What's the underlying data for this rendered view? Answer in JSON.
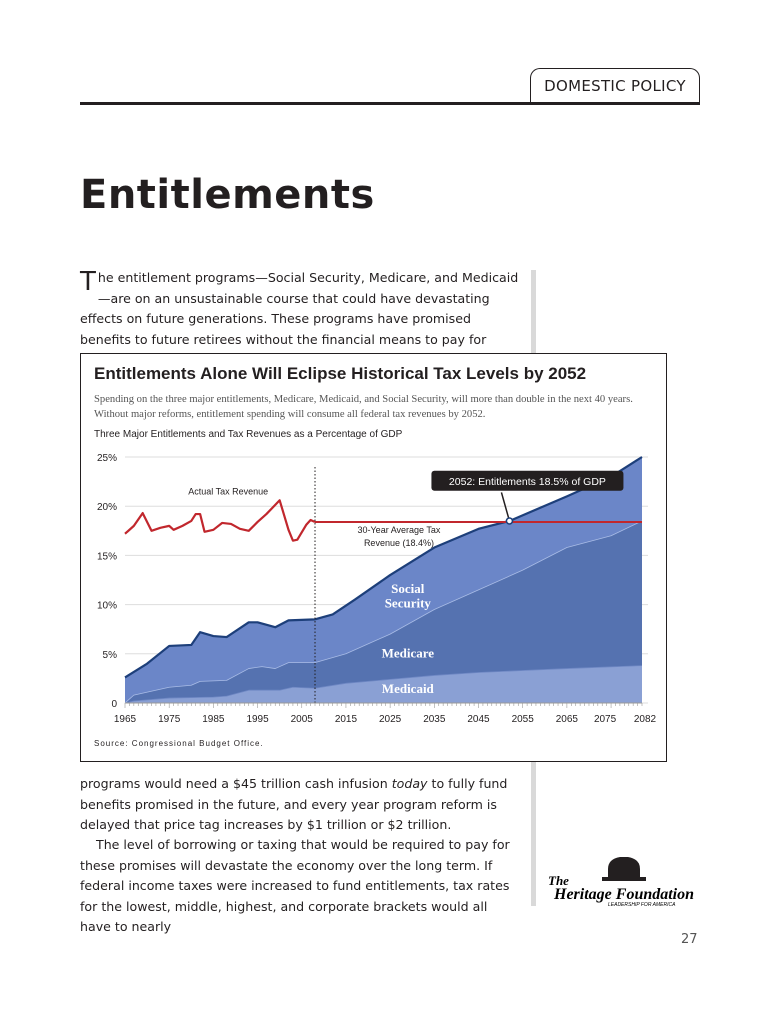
{
  "header": {
    "section_tab": "DOMESTIC POLICY"
  },
  "page_title": "Entitlements",
  "body": {
    "para1_dropcap": "T",
    "para1_before": "he entitlement programs—Social Security, Medicare, and Medicaid—are on an unsustainable course that could have devastating effects on future generations. These programs have promised benefits to future retirees without the financial means to pay for them. Collectively, these",
    "para1_after_a": "programs would need a $45 trillion cash infusion ",
    "para1_after_em": "today",
    "para1_after_b": " to fully fund benefits promised in the future, and every year program reform is delayed that price tag increases by $1 trillion or $2 trillion.",
    "para2": "The level of borrowing or taxing that would be required to pay for these promises will devastate the economy over the long term. If federal income taxes were increased to fund entitlements, tax rates for the lowest, middle, highest, and corporate brackets would all have to nearly"
  },
  "logo": {
    "name": "The Heritage Foundation",
    "tagline": "LEADERSHIP FOR AMERICA"
  },
  "page_number": "27",
  "colors": {
    "tax_line": "#c1272d",
    "social_security": "#6b86c8",
    "medicare": "#5572b0",
    "medicaid": "#8aa0d4",
    "top_line": "#1d3f7a"
  },
  "chart_data": {
    "type": "area",
    "title": "Entitlements Alone Will Eclipse Historical Tax Levels by 2052",
    "subtitle": "Spending on the three major entitlements, Medicare, Medicaid, and Social Security, will more than double in the next 40 years. Without major reforms, entitlement spending will consume all federal tax revenues by 2052.",
    "chart_label": "Three Major Entitlements and Tax Revenues as a Percentage of GDP",
    "source": "Source: Congressional Budget Office.",
    "xlim": [
      1965,
      2082
    ],
    "ylim": [
      0,
      25
    ],
    "x_ticks": [
      "1965",
      "1975",
      "1985",
      "1995",
      "2005",
      "2015",
      "2025",
      "2035",
      "2045",
      "2055",
      "2065",
      "2075",
      "2082"
    ],
    "y_ticks": [
      "0",
      "5%",
      "10%",
      "15%",
      "20%",
      "25%"
    ],
    "grid": true,
    "stacked": true,
    "series": [
      {
        "name": "Medicaid",
        "x": [
          1965,
          1967,
          1975,
          1985,
          1988,
          1993,
          2000,
          2003,
          2008,
          2015,
          2025,
          2035,
          2045,
          2055,
          2065,
          2082
        ],
        "y": [
          0,
          0.2,
          0.5,
          0.6,
          0.7,
          1.3,
          1.3,
          1.6,
          1.5,
          2.0,
          2.4,
          2.8,
          3.1,
          3.3,
          3.5,
          3.8
        ]
      },
      {
        "name": "Medicare",
        "x": [
          1965,
          1967,
          1975,
          1980,
          1982,
          1988,
          1993,
          1996,
          1999,
          2002,
          2008,
          2015,
          2025,
          2035,
          2045,
          2055,
          2065,
          2075,
          2082
        ],
        "y_cumulative": [
          0,
          0.8,
          1.6,
          1.8,
          2.2,
          2.3,
          3.5,
          3.7,
          3.5,
          4.1,
          4.1,
          5.0,
          7.0,
          9.5,
          11.5,
          13.5,
          15.8,
          17.0,
          18.5
        ]
      },
      {
        "name": "Social Security",
        "x": [
          1965,
          1970,
          1975,
          1980,
          1982,
          1985,
          1988,
          1993,
          1995,
          1999,
          2002,
          2008,
          2012,
          2017,
          2025,
          2035,
          2045,
          2052,
          2065,
          2075,
          2082
        ],
        "y_cumulative": [
          2.6,
          4.0,
          5.8,
          5.9,
          7.2,
          6.8,
          6.7,
          8.2,
          8.2,
          7.7,
          8.4,
          8.5,
          9.0,
          10.5,
          13.0,
          15.8,
          17.7,
          18.5,
          21.0,
          23.0,
          25.0
        ]
      },
      {
        "name": "Actual Tax Revenue",
        "x": [
          1965,
          1967,
          1969,
          1971,
          1973,
          1975,
          1976,
          1978,
          1980,
          1981,
          1982,
          1983,
          1985,
          1987,
          1989,
          1991,
          1993,
          1995,
          1997,
          2000,
          2002,
          2003,
          2004,
          2006,
          2007,
          2008
        ],
        "y": [
          17.2,
          18.0,
          19.3,
          17.5,
          17.8,
          18.0,
          17.6,
          18.0,
          18.5,
          19.2,
          19.2,
          17.4,
          17.6,
          18.3,
          18.2,
          17.7,
          17.5,
          18.4,
          19.2,
          20.6,
          17.6,
          16.5,
          16.6,
          18.1,
          18.6,
          18.4
        ]
      }
    ],
    "reference_line": {
      "label": "30-Year Average Tax Revenue (18.4%)",
      "y": 18.4,
      "x_range": [
        2008,
        2082
      ]
    },
    "divider_year": 2008,
    "annotations": [
      {
        "text": "Actual Tax Revenue"
      },
      {
        "text": "2052: Entitlements 18.5% of GDP",
        "x": 2052,
        "y": 18.5
      },
      {
        "text": "Social Security"
      },
      {
        "text": "Medicare"
      },
      {
        "text": "Medicaid"
      }
    ]
  }
}
